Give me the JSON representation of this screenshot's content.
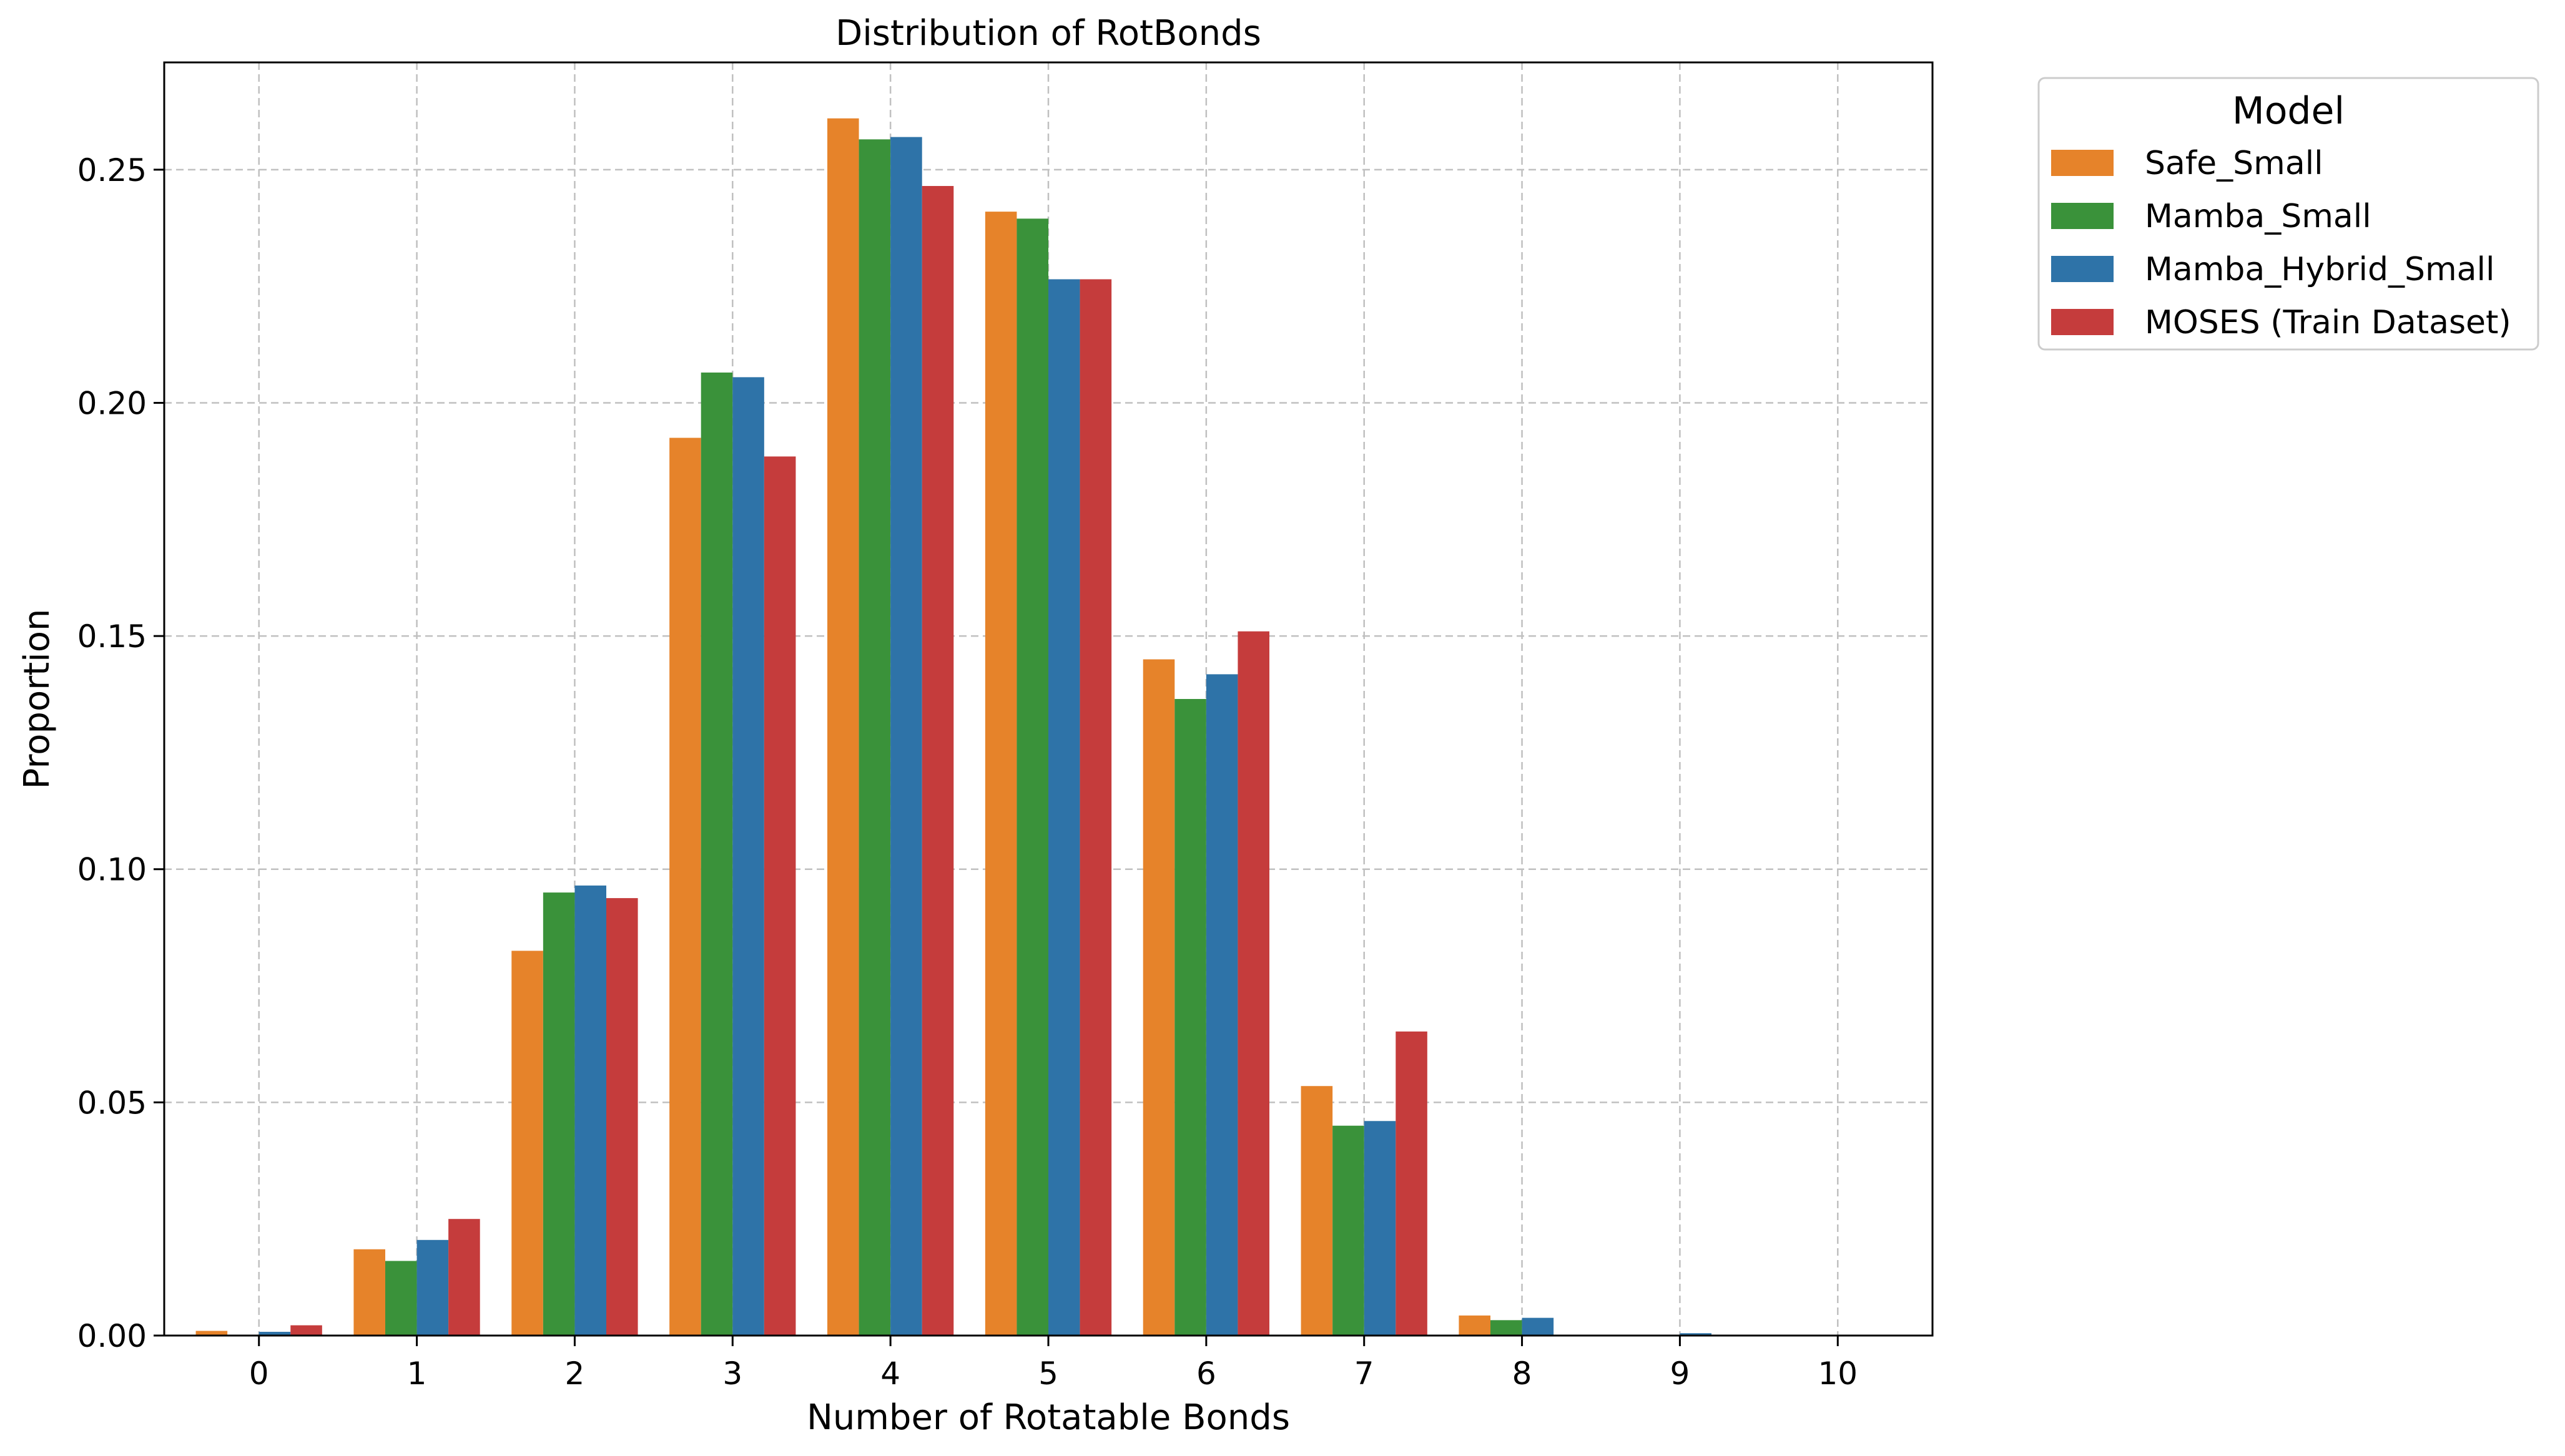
{
  "chart_data": {
    "type": "bar",
    "title": "Distribution of RotBonds",
    "xlabel": "Number of Rotatable Bonds",
    "ylabel": "Proportion",
    "categories": [
      "0",
      "1",
      "2",
      "3",
      "4",
      "5",
      "6",
      "7",
      "8",
      "9",
      "10"
    ],
    "ylim": [
      0,
      0.273
    ],
    "yticks": [
      "0.00",
      "0.05",
      "0.10",
      "0.15",
      "0.20",
      "0.25"
    ],
    "ytick_values": [
      0,
      0.05,
      0.1,
      0.15,
      0.2,
      0.25
    ],
    "grid": true,
    "legend": {
      "title": "Model",
      "placement": "outside top-right"
    },
    "series": [
      {
        "name": "Safe_Small",
        "color": "#e6832a",
        "values": [
          0.001,
          0.0185,
          0.0825,
          0.1925,
          0.261,
          0.241,
          0.145,
          0.0535,
          0.0043,
          0.0002,
          0.0
        ]
      },
      {
        "name": "Mamba_Small",
        "color": "#3a923a",
        "values": [
          0.0002,
          0.016,
          0.095,
          0.2065,
          0.2565,
          0.2395,
          0.1365,
          0.045,
          0.0033,
          0.0001,
          0.0
        ]
      },
      {
        "name": "Mamba_Hybrid_Small",
        "color": "#2e73a8",
        "values": [
          0.0008,
          0.0205,
          0.0965,
          0.2055,
          0.257,
          0.2265,
          0.1418,
          0.046,
          0.0038,
          0.0005,
          0.0
        ]
      },
      {
        "name": "MOSES (Train Dataset)",
        "color": "#c53c3c",
        "values": [
          0.0022,
          0.025,
          0.0938,
          0.1885,
          0.2465,
          0.2265,
          0.151,
          0.0652,
          0.0,
          0.0,
          0.0
        ]
      }
    ]
  }
}
